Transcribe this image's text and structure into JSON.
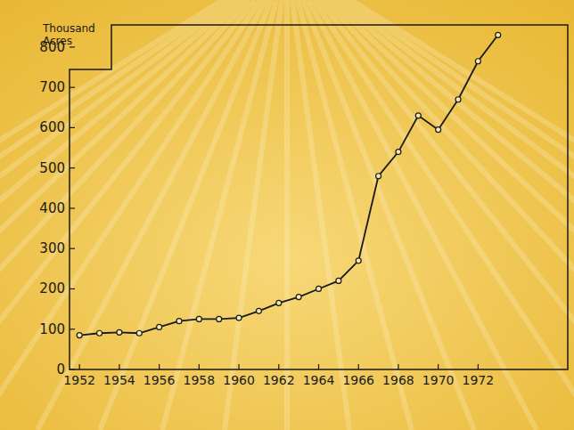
{
  "chart_data": {
    "type": "line",
    "y_label": "Thousand Acres",
    "x": [
      1952,
      1953,
      1954,
      1955,
      1956,
      1957,
      1958,
      1959,
      1960,
      1961,
      1962,
      1963,
      1964,
      1965,
      1966,
      1967,
      1968,
      1969,
      1970,
      1971,
      1972,
      1973
    ],
    "series": [
      {
        "name": "Acres",
        "color": "#1a1a1a",
        "marker": "circle",
        "values": [
          85,
          90,
          92,
          90,
          105,
          120,
          125,
          125,
          128,
          145,
          165,
          180,
          200,
          220,
          270,
          480,
          540,
          630,
          595,
          670,
          765,
          830
        ]
      }
    ],
    "xlim": [
      1951.5,
      1976.5
    ],
    "xticks": [
      1952,
      1954,
      1956,
      1958,
      1960,
      1962,
      1964,
      1966,
      1968,
      1970,
      1972
    ],
    "ylim": [
      0,
      855
    ],
    "yticks": [
      0,
      100,
      200,
      300,
      400,
      500,
      600,
      700,
      800
    ],
    "grid": false
  }
}
